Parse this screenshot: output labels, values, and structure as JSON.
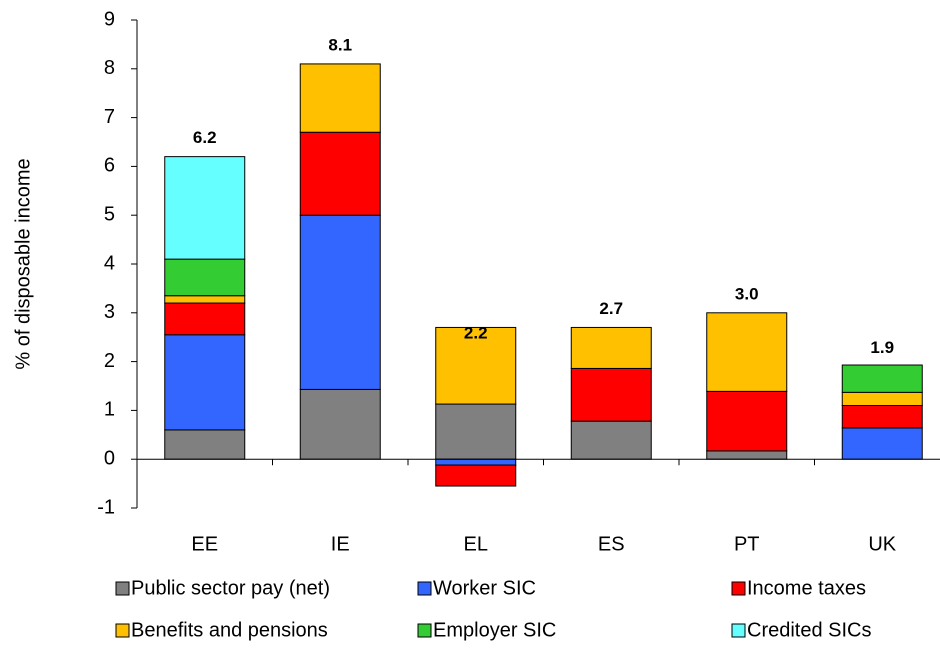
{
  "chart_data": {
    "type": "stacked-bar",
    "y_label": "% of disposable income",
    "categories": [
      "EE",
      "IE",
      "EL",
      "ES",
      "PT",
      "UK"
    ],
    "series": [
      {
        "name": "Public sector pay (net)",
        "color": "#808080",
        "values": [
          0.6,
          1.43,
          1.13,
          0.78,
          0.17,
          0
        ]
      },
      {
        "name": "Worker SIC",
        "color": "#3366ff",
        "values": [
          1.95,
          3.57,
          -0.12,
          0,
          0,
          0.64
        ]
      },
      {
        "name": "Income taxes",
        "color": "#ff0000",
        "values": [
          0.65,
          1.7,
          -0.43,
          1.08,
          1.22,
          0.46
        ]
      },
      {
        "name": "Benefits and pensions",
        "color": "#ffc000",
        "values": [
          0.15,
          1.4,
          1.57,
          0.84,
          1.61,
          0.27
        ]
      },
      {
        "name": "Employer SIC",
        "color": "#33cc33",
        "values": [
          0.75,
          0,
          0,
          0,
          0,
          0.56
        ]
      },
      {
        "name": "Credited SICs",
        "color": "#66ffff",
        "values": [
          2.1,
          0,
          0,
          0,
          0,
          0
        ]
      }
    ],
    "totals": {
      "values": [
        6.2,
        8.1,
        2.2,
        2.7,
        3.0,
        1.9
      ],
      "value_labels": [
        "6.2",
        "8.1",
        "2.2",
        "2.7",
        "3.0",
        "1.9"
      ]
    },
    "ylim": [
      -1,
      9
    ],
    "yticks": [
      -1,
      0,
      1,
      2,
      3,
      4,
      5,
      6,
      7,
      8,
      9
    ],
    "grid": false
  }
}
